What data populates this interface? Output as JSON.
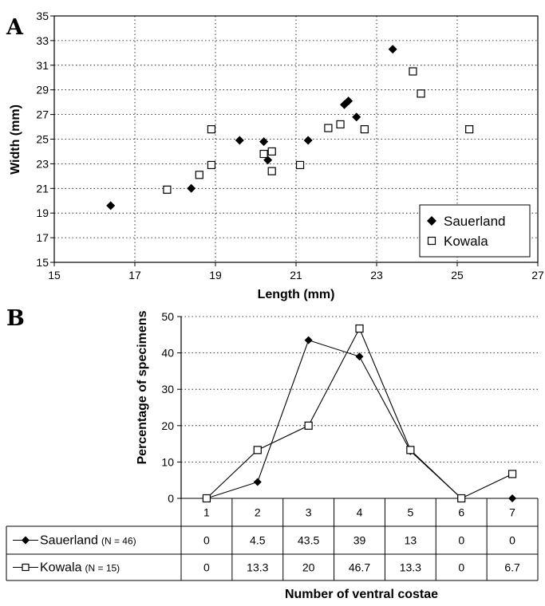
{
  "chart_data": [
    {
      "panel": "A",
      "type": "scatter",
      "xlabel": "Length (mm)",
      "ylabel": "Width (mm)",
      "xlim": [
        15,
        27
      ],
      "ylim": [
        15,
        35
      ],
      "x_ticks": [
        15,
        17,
        19,
        21,
        23,
        25,
        27
      ],
      "y_ticks": [
        15,
        17,
        19,
        21,
        23,
        25,
        27,
        29,
        31,
        33,
        35
      ],
      "grid": true,
      "legend_position": "bottom-right",
      "series": [
        {
          "name": "Sauerland",
          "marker": "filled-diamond",
          "points": [
            {
              "x": 16.4,
              "y": 19.6
            },
            {
              "x": 18.4,
              "y": 21.0
            },
            {
              "x": 19.6,
              "y": 24.9
            },
            {
              "x": 20.2,
              "y": 24.8
            },
            {
              "x": 20.3,
              "y": 23.3
            },
            {
              "x": 21.3,
              "y": 24.9
            },
            {
              "x": 22.2,
              "y": 27.8
            },
            {
              "x": 22.3,
              "y": 28.1
            },
            {
              "x": 22.5,
              "y": 26.8
            },
            {
              "x": 23.4,
              "y": 32.3
            }
          ]
        },
        {
          "name": "Kowala",
          "marker": "open-square",
          "points": [
            {
              "x": 17.8,
              "y": 20.9
            },
            {
              "x": 18.6,
              "y": 22.1
            },
            {
              "x": 18.9,
              "y": 22.9
            },
            {
              "x": 18.9,
              "y": 25.8
            },
            {
              "x": 20.2,
              "y": 23.8
            },
            {
              "x": 20.4,
              "y": 24.0
            },
            {
              "x": 20.4,
              "y": 22.4
            },
            {
              "x": 21.1,
              "y": 22.9
            },
            {
              "x": 21.8,
              "y": 25.9
            },
            {
              "x": 22.1,
              "y": 26.2
            },
            {
              "x": 22.7,
              "y": 25.8
            },
            {
              "x": 23.9,
              "y": 30.5
            },
            {
              "x": 24.1,
              "y": 28.7
            },
            {
              "x": 25.3,
              "y": 25.8
            }
          ]
        }
      ]
    },
    {
      "panel": "B",
      "type": "line",
      "xlabel": "Number of ventral costae",
      "ylabel": "Percentage of specimens",
      "categories": [
        "1",
        "2",
        "3",
        "4",
        "5",
        "6",
        "7"
      ],
      "ylim": [
        0,
        50
      ],
      "y_ticks": [
        0,
        10,
        20,
        30,
        40,
        50
      ],
      "grid": true,
      "series": [
        {
          "name": "Sauerland",
          "n_label": "(N = 46)",
          "marker": "filled-diamond",
          "values": [
            0,
            4.5,
            43.5,
            39,
            13,
            0,
            0
          ],
          "table_values": [
            "0",
            "4.5",
            "43.5",
            "39",
            "13",
            "0",
            "0"
          ]
        },
        {
          "name": "Kowala",
          "n_label": "(N = 15)",
          "marker": "open-square",
          "values": [
            0,
            13.3,
            20,
            46.7,
            13.3,
            0,
            6.7
          ],
          "table_values": [
            "0",
            "13.3",
            "20",
            "46.7",
            "13.3",
            "0",
            "6.7"
          ]
        }
      ]
    }
  ]
}
